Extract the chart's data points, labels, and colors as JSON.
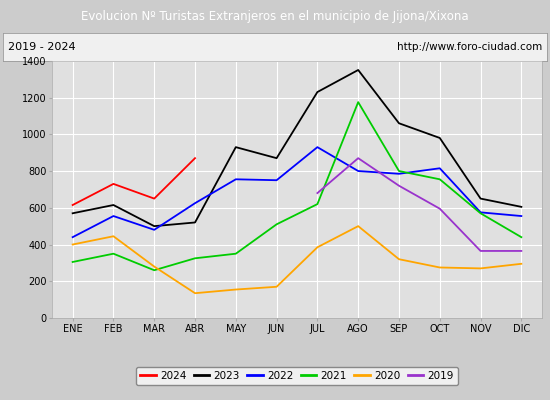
{
  "title": "Evolucion Nº Turistas Extranjeros en el municipio de Jijona/Xixona",
  "subtitle_left": "2019 - 2024",
  "subtitle_right": "http://www.foro-ciudad.com",
  "months": [
    "ENE",
    "FEB",
    "MAR",
    "ABR",
    "MAY",
    "JUN",
    "JUL",
    "AGO",
    "SEP",
    "OCT",
    "NOV",
    "DIC"
  ],
  "ylim": [
    0,
    1400
  ],
  "yticks": [
    0,
    200,
    400,
    600,
    800,
    1000,
    1200,
    1400
  ],
  "series": {
    "2024": {
      "color": "#ff0000",
      "data": [
        615,
        730,
        650,
        870,
        null,
        null,
        null,
        null,
        null,
        null,
        null,
        null
      ]
    },
    "2023": {
      "color": "#000000",
      "data": [
        570,
        615,
        500,
        520,
        930,
        870,
        1230,
        1350,
        1060,
        980,
        650,
        605
      ]
    },
    "2022": {
      "color": "#0000ff",
      "data": [
        440,
        555,
        480,
        625,
        755,
        750,
        930,
        800,
        785,
        815,
        575,
        555
      ]
    },
    "2021": {
      "color": "#00cc00",
      "data": [
        305,
        350,
        260,
        325,
        350,
        510,
        620,
        1175,
        800,
        755,
        570,
        440
      ]
    },
    "2020": {
      "color": "#ffa500",
      "data": [
        400,
        445,
        280,
        135,
        155,
        170,
        385,
        500,
        320,
        275,
        270,
        295
      ]
    },
    "2019": {
      "color": "#9933cc",
      "data": [
        null,
        null,
        null,
        null,
        null,
        null,
        680,
        870,
        720,
        595,
        365,
        365
      ]
    }
  },
  "legend_order": [
    "2024",
    "2023",
    "2022",
    "2021",
    "2020",
    "2019"
  ],
  "bg_color": "#cccccc",
  "plot_bg_color": "#e0e0e0",
  "title_bg_color": "#4477cc",
  "title_text_color": "#ffffff",
  "header_bg_color": "#f0f0f0",
  "grid_color": "#ffffff"
}
